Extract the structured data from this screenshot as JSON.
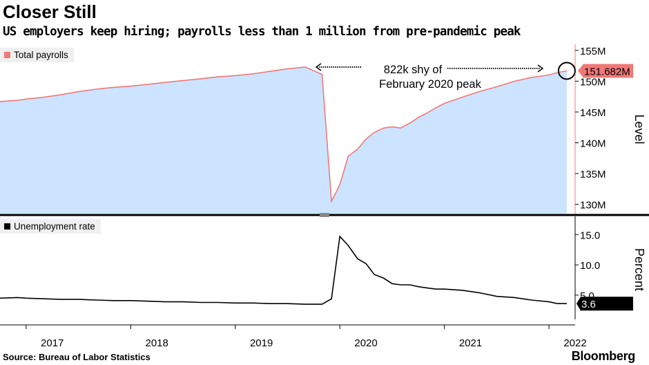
{
  "header": {
    "title": "Closer Still",
    "subtitle": "US employers keep hiring; payrolls less than 1 million from pre-pandemic peak"
  },
  "footer": {
    "source": "Source: Bureau of Labor Statistics",
    "brand": "Bloomberg"
  },
  "colors": {
    "payrolls_line": "#f07878",
    "payrolls_fill": "#cce4ff",
    "unemployment_line": "#000000",
    "label_box": "#f07878",
    "divider": "#000000"
  },
  "chart_data": [
    {
      "type": "area",
      "legend": "Total payrolls",
      "ylabel": "Level",
      "ylim": [
        128.5,
        156
      ],
      "yticks": [
        130,
        135,
        140,
        145,
        150,
        155
      ],
      "ytick_labels": [
        "130M",
        "135M",
        "140M",
        "145M",
        "150M",
        "155M"
      ],
      "xlim": [
        2016.75,
        2022.25
      ],
      "last_value_label": "151.682M",
      "annotation": [
        "822k shy of",
        "February 2020 peak"
      ],
      "series": [
        {
          "name": "Total payrolls",
          "x": [
            2016.75,
            2016.92,
            2017.0,
            2017.17,
            2017.33,
            2017.5,
            2017.67,
            2017.83,
            2018.0,
            2018.17,
            2018.33,
            2018.5,
            2018.67,
            2018.83,
            2019.0,
            2019.17,
            2019.33,
            2019.5,
            2019.67,
            2019.83,
            2019.92,
            2020.0,
            2020.08,
            2020.17,
            2020.25,
            2020.33,
            2020.42,
            2020.5,
            2020.58,
            2020.67,
            2020.75,
            2020.83,
            2020.92,
            2021.0,
            2021.17,
            2021.33,
            2021.5,
            2021.67,
            2021.83,
            2022.0,
            2022.08,
            2022.17
          ],
          "y": [
            146.7,
            146.9,
            147.1,
            147.4,
            147.8,
            148.3,
            148.7,
            149.0,
            149.2,
            149.5,
            149.8,
            150.1,
            150.4,
            150.7,
            150.9,
            151.2,
            151.6,
            152.0,
            152.3,
            151.1,
            130.5,
            133.2,
            137.8,
            139.0,
            140.6,
            141.7,
            142.4,
            142.6,
            142.4,
            143.2,
            144.1,
            144.8,
            145.7,
            146.4,
            147.4,
            148.3,
            149.1,
            150.0,
            150.6,
            151.0,
            151.4,
            151.682
          ]
        }
      ]
    },
    {
      "type": "line",
      "legend": "Unemployment rate",
      "ylabel": "Percent",
      "ylim": [
        1.0,
        18.0
      ],
      "yticks": [
        5.0,
        10.0,
        15.0
      ],
      "ytick_labels": [
        "5.0",
        "10.0",
        "15.0"
      ],
      "xlim": [
        2016.75,
        2022.25
      ],
      "xticks": [
        2017.0,
        2018.0,
        2019.0,
        2020.0,
        2021.0,
        2022.0
      ],
      "xtick_labels": [
        "2017",
        "2018",
        "2019",
        "2020",
        "2021",
        "2022"
      ],
      "last_value_label": "3.6",
      "series": [
        {
          "name": "Unemployment rate",
          "x": [
            2016.75,
            2016.92,
            2017.0,
            2017.17,
            2017.33,
            2017.5,
            2017.67,
            2017.83,
            2018.0,
            2018.17,
            2018.33,
            2018.5,
            2018.67,
            2018.83,
            2019.0,
            2019.17,
            2019.33,
            2019.5,
            2019.67,
            2019.75,
            2019.83,
            2019.92,
            2020.0,
            2020.08,
            2020.17,
            2020.25,
            2020.33,
            2020.42,
            2020.5,
            2020.58,
            2020.67,
            2020.75,
            2020.83,
            2020.92,
            2021.0,
            2021.17,
            2021.33,
            2021.5,
            2021.67,
            2021.83,
            2022.0,
            2022.08,
            2022.17
          ],
          "y": [
            4.5,
            4.6,
            4.5,
            4.4,
            4.3,
            4.3,
            4.2,
            4.1,
            4.1,
            4.0,
            3.9,
            3.9,
            3.8,
            3.8,
            3.7,
            3.7,
            3.6,
            3.6,
            3.5,
            3.5,
            3.5,
            4.4,
            14.7,
            13.2,
            11.0,
            10.2,
            8.4,
            7.8,
            6.9,
            6.7,
            6.7,
            6.4,
            6.2,
            6.0,
            6.0,
            5.8,
            5.4,
            4.8,
            4.6,
            4.2,
            3.9,
            3.6,
            3.6
          ]
        }
      ]
    }
  ]
}
